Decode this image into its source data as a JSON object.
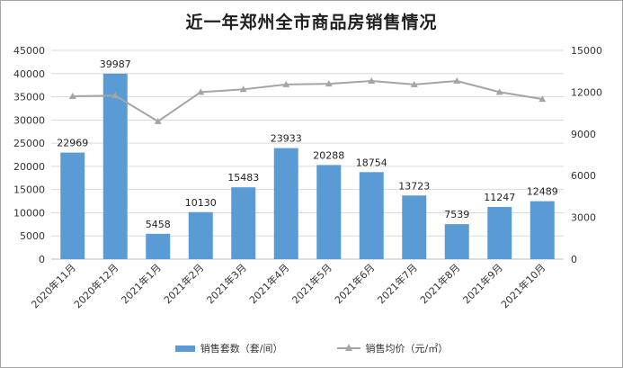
{
  "chart_data": {
    "type": "bar",
    "title": "近一年郑州全市商品房销售情况",
    "categories": [
      "2020年11月",
      "2020年12月",
      "2021年1月",
      "2021年2月",
      "2021年3月",
      "2021年4月",
      "2021年5月",
      "2021年6月",
      "2021年7月",
      "2021年8月",
      "2021年9月",
      "2021年10月"
    ],
    "series": [
      {
        "name": "销售套数（套/间）",
        "type": "bar",
        "axis": "left",
        "values": [
          22969,
          39987,
          5458,
          10130,
          15483,
          23933,
          20288,
          18754,
          13723,
          7539,
          11247,
          12489
        ]
      },
      {
        "name": "销售均价（元/㎡）",
        "type": "line",
        "axis": "right",
        "values": [
          11700,
          11750,
          9900,
          12000,
          12200,
          12550,
          12600,
          12800,
          12550,
          12800,
          12000,
          11500
        ]
      }
    ],
    "ylim_left": [
      0,
      45000
    ],
    "yticks_left": [
      0,
      5000,
      10000,
      15000,
      20000,
      25000,
      30000,
      35000,
      40000,
      45000
    ],
    "ylim_right": [
      0,
      15000
    ],
    "yticks_right": [
      0,
      3000,
      6000,
      9000,
      12000,
      15000
    ],
    "grid": true,
    "legend": "bottom",
    "colors": {
      "bar": "#5b9bd5",
      "line": "#a5a5a5",
      "grid": "#d9d9d9"
    }
  }
}
